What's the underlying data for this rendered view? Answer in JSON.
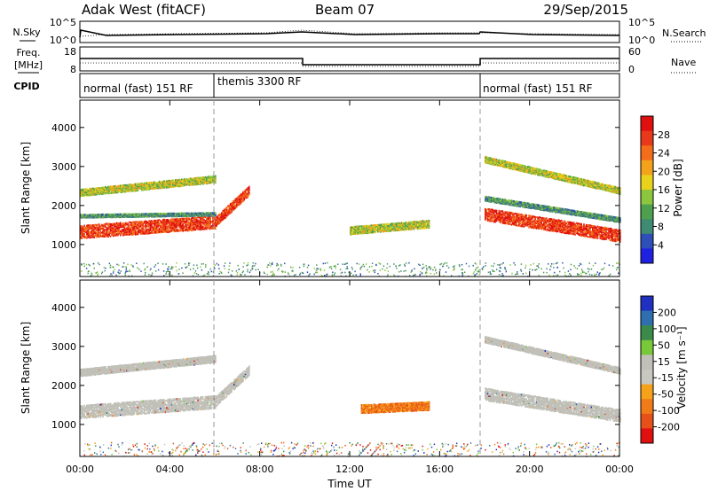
{
  "header": {
    "station": "Adak West (fitACF)",
    "beam": "Beam 07",
    "date": "29/Sep/2015"
  },
  "sky_panel": {
    "left_label": "N.Sky",
    "right_label": "N.Search",
    "left_ticks": [
      "10^5",
      "10^0"
    ],
    "right_ticks": [
      "10^5",
      "10^0"
    ]
  },
  "freq_panel": {
    "left_label_1": "Freq.",
    "left_label_2": "[MHz]",
    "right_label": "Nave",
    "left_ticks": [
      "18",
      "8"
    ],
    "right_ticks": [
      "60",
      "0"
    ]
  },
  "cpid_panel": {
    "label": "CPID",
    "segments": [
      {
        "start_hr": 0,
        "end_hr": 6,
        "text": "normal (fast) 151 RF"
      },
      {
        "start_hr": 6,
        "end_hr": 18,
        "text": "themis 3300 RF"
      },
      {
        "start_hr": 18,
        "end_hr": 24,
        "text": "normal (fast) 151 RF"
      }
    ]
  },
  "colors": {
    "power_scale": [
      "#2020e0",
      "#2e4fb8",
      "#3f8a72",
      "#4fa04e",
      "#8cc63f",
      "#e8d21c",
      "#f4a21c",
      "#f36d1a",
      "#e8391a",
      "#e01010"
    ],
    "velocity_scale": [
      "#2030c0",
      "#2f6fb0",
      "#3c8a4a",
      "#78c83a",
      "#c0c0b8",
      "#c8c8c0",
      "#f5a21a",
      "#f07b18",
      "#e8501a",
      "#e01010"
    ],
    "ground_scatter": "#c0c0b8"
  },
  "chart_data": [
    {
      "type": "heatmap",
      "panel": "power",
      "ylabel": "Slant Range [km]",
      "xlim_hr": [
        0,
        24
      ],
      "ylim_km": [
        180,
        4700
      ],
      "y_ticks": [
        "1000",
        "2000",
        "3000",
        "4000"
      ],
      "y_tick_values": [
        1000,
        2000,
        3000,
        4000
      ],
      "colorbar": {
        "label": "Power [dB]",
        "ticks": [
          "4",
          "8",
          "12",
          "16",
          "20",
          "24",
          "28"
        ],
        "tick_values": [
          4,
          8,
          12,
          16,
          20,
          24,
          28
        ],
        "range": [
          0,
          32
        ]
      },
      "bands": [
        {
          "t0": 0.0,
          "t1": 6.0,
          "r_start": 1350,
          "r_end_val": 1600,
          "width": 340,
          "kind": "strong"
        },
        {
          "t0": 6.0,
          "t1": 7.5,
          "r_start": 1600,
          "r_end_val": 2400,
          "width": 250,
          "kind": "strong"
        },
        {
          "t0": 0.0,
          "t1": 6.0,
          "r_start": 2350,
          "r_end_val": 2700,
          "width": 180,
          "kind": "mid"
        },
        {
          "t0": 0.0,
          "t1": 6.0,
          "r_start": 1750,
          "r_end_val": 1800,
          "width": 80,
          "kind": "low"
        },
        {
          "t0": 12.0,
          "t1": 15.5,
          "r_start": 1380,
          "r_end_val": 1550,
          "width": 200,
          "kind": "mid"
        },
        {
          "t0": 18.0,
          "t1": 24.0,
          "r_start": 1800,
          "r_end_val": 1250,
          "width": 320,
          "kind": "strong"
        },
        {
          "t0": 18.0,
          "t1": 24.0,
          "r_start": 3200,
          "r_end_val": 2400,
          "width": 160,
          "kind": "mid"
        },
        {
          "t0": 18.0,
          "t1": 24.0,
          "r_start": 2200,
          "r_end_val": 1650,
          "width": 120,
          "kind": "low"
        }
      ]
    },
    {
      "type": "heatmap",
      "panel": "velocity",
      "ylabel": "Slant Range [km]",
      "xlabel": "Time UT",
      "xlim_hr": [
        0,
        24
      ],
      "ylim_km": [
        180,
        4700
      ],
      "x_ticks": [
        "00:00",
        "04:00",
        "08:00",
        "12:00",
        "16:00",
        "20:00",
        "00:00"
      ],
      "x_tick_values": [
        0,
        4,
        8,
        12,
        16,
        20,
        24
      ],
      "y_ticks": [
        "1000",
        "2000",
        "3000",
        "4000"
      ],
      "y_tick_values": [
        1000,
        2000,
        3000,
        4000
      ],
      "colorbar": {
        "label": "Velocity [m s⁻¹]",
        "ticks": [
          "200",
          "100",
          "50",
          "15",
          "-15",
          "-50",
          "-100",
          "-200"
        ]
      },
      "bands": [
        {
          "t0": 0.0,
          "t1": 6.0,
          "r_start": 1350,
          "r_end_val": 1600,
          "width": 340,
          "kind": "gs"
        },
        {
          "t0": 6.0,
          "t1": 7.5,
          "r_start": 1600,
          "r_end_val": 2400,
          "width": 250,
          "kind": "gs"
        },
        {
          "t0": 0.0,
          "t1": 6.0,
          "r_start": 2350,
          "r_end_val": 2700,
          "width": 180,
          "kind": "gs"
        },
        {
          "t0": 12.5,
          "t1": 15.5,
          "r_start": 1420,
          "r_end_val": 1500,
          "width": 220,
          "kind": "neg"
        },
        {
          "t0": 18.0,
          "t1": 24.0,
          "r_start": 1800,
          "r_end_val": 1250,
          "width": 320,
          "kind": "gs"
        },
        {
          "t0": 18.0,
          "t1": 24.0,
          "r_start": 3200,
          "r_end_val": 2400,
          "width": 160,
          "kind": "gs"
        }
      ]
    }
  ]
}
